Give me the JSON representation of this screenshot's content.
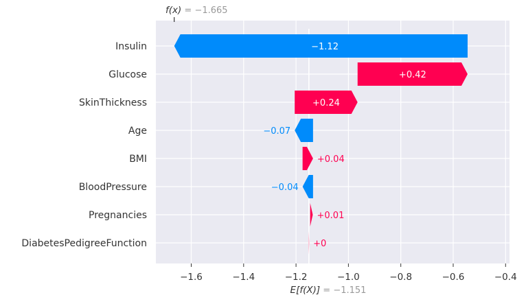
{
  "chart_data": {
    "type": "waterfall",
    "fx_label": "f(x) = −1.665",
    "base_label": "E[f(X)] = −1.151",
    "fx_value": -1.665,
    "base_value": -1.151,
    "xlim": [
      -1.735,
      -0.385
    ],
    "xticks": [
      -1.6,
      -1.4,
      -1.2,
      -1.0,
      -0.8,
      -0.6,
      -0.4
    ],
    "xtick_labels": [
      "−1.6",
      "−1.4",
      "−1.2",
      "−1.0",
      "−0.8",
      "−0.6",
      "−0.4"
    ],
    "grid": true,
    "colors": {
      "positive": "#ff0051",
      "negative": "#008bfb",
      "background": "#eaeaf2"
    },
    "features": [
      {
        "name": "Insulin",
        "value": -1.12,
        "label": "−1.12",
        "start": -0.545,
        "end": -1.665
      },
      {
        "name": "Glucose",
        "value": 0.42,
        "label": "+0.42",
        "start": -0.965,
        "end": -0.545
      },
      {
        "name": "SkinThickness",
        "value": 0.24,
        "label": "+0.24",
        "start": -1.205,
        "end": -0.965
      },
      {
        "name": "Age",
        "value": -0.07,
        "label": "−0.07",
        "start": -1.135,
        "end": -1.205
      },
      {
        "name": "BMI",
        "value": 0.04,
        "label": "+0.04",
        "start": -1.175,
        "end": -1.135
      },
      {
        "name": "BloodPressure",
        "value": -0.04,
        "label": "−0.04",
        "start": -1.135,
        "end": -1.175
      },
      {
        "name": "Pregnancies",
        "value": 0.01,
        "label": "+0.01",
        "start": -1.146,
        "end": -1.136
      },
      {
        "name": "DiabetesPedigreeFunction",
        "value": 0.0,
        "label": "+0",
        "start": -1.151,
        "end": -1.15
      }
    ]
  }
}
